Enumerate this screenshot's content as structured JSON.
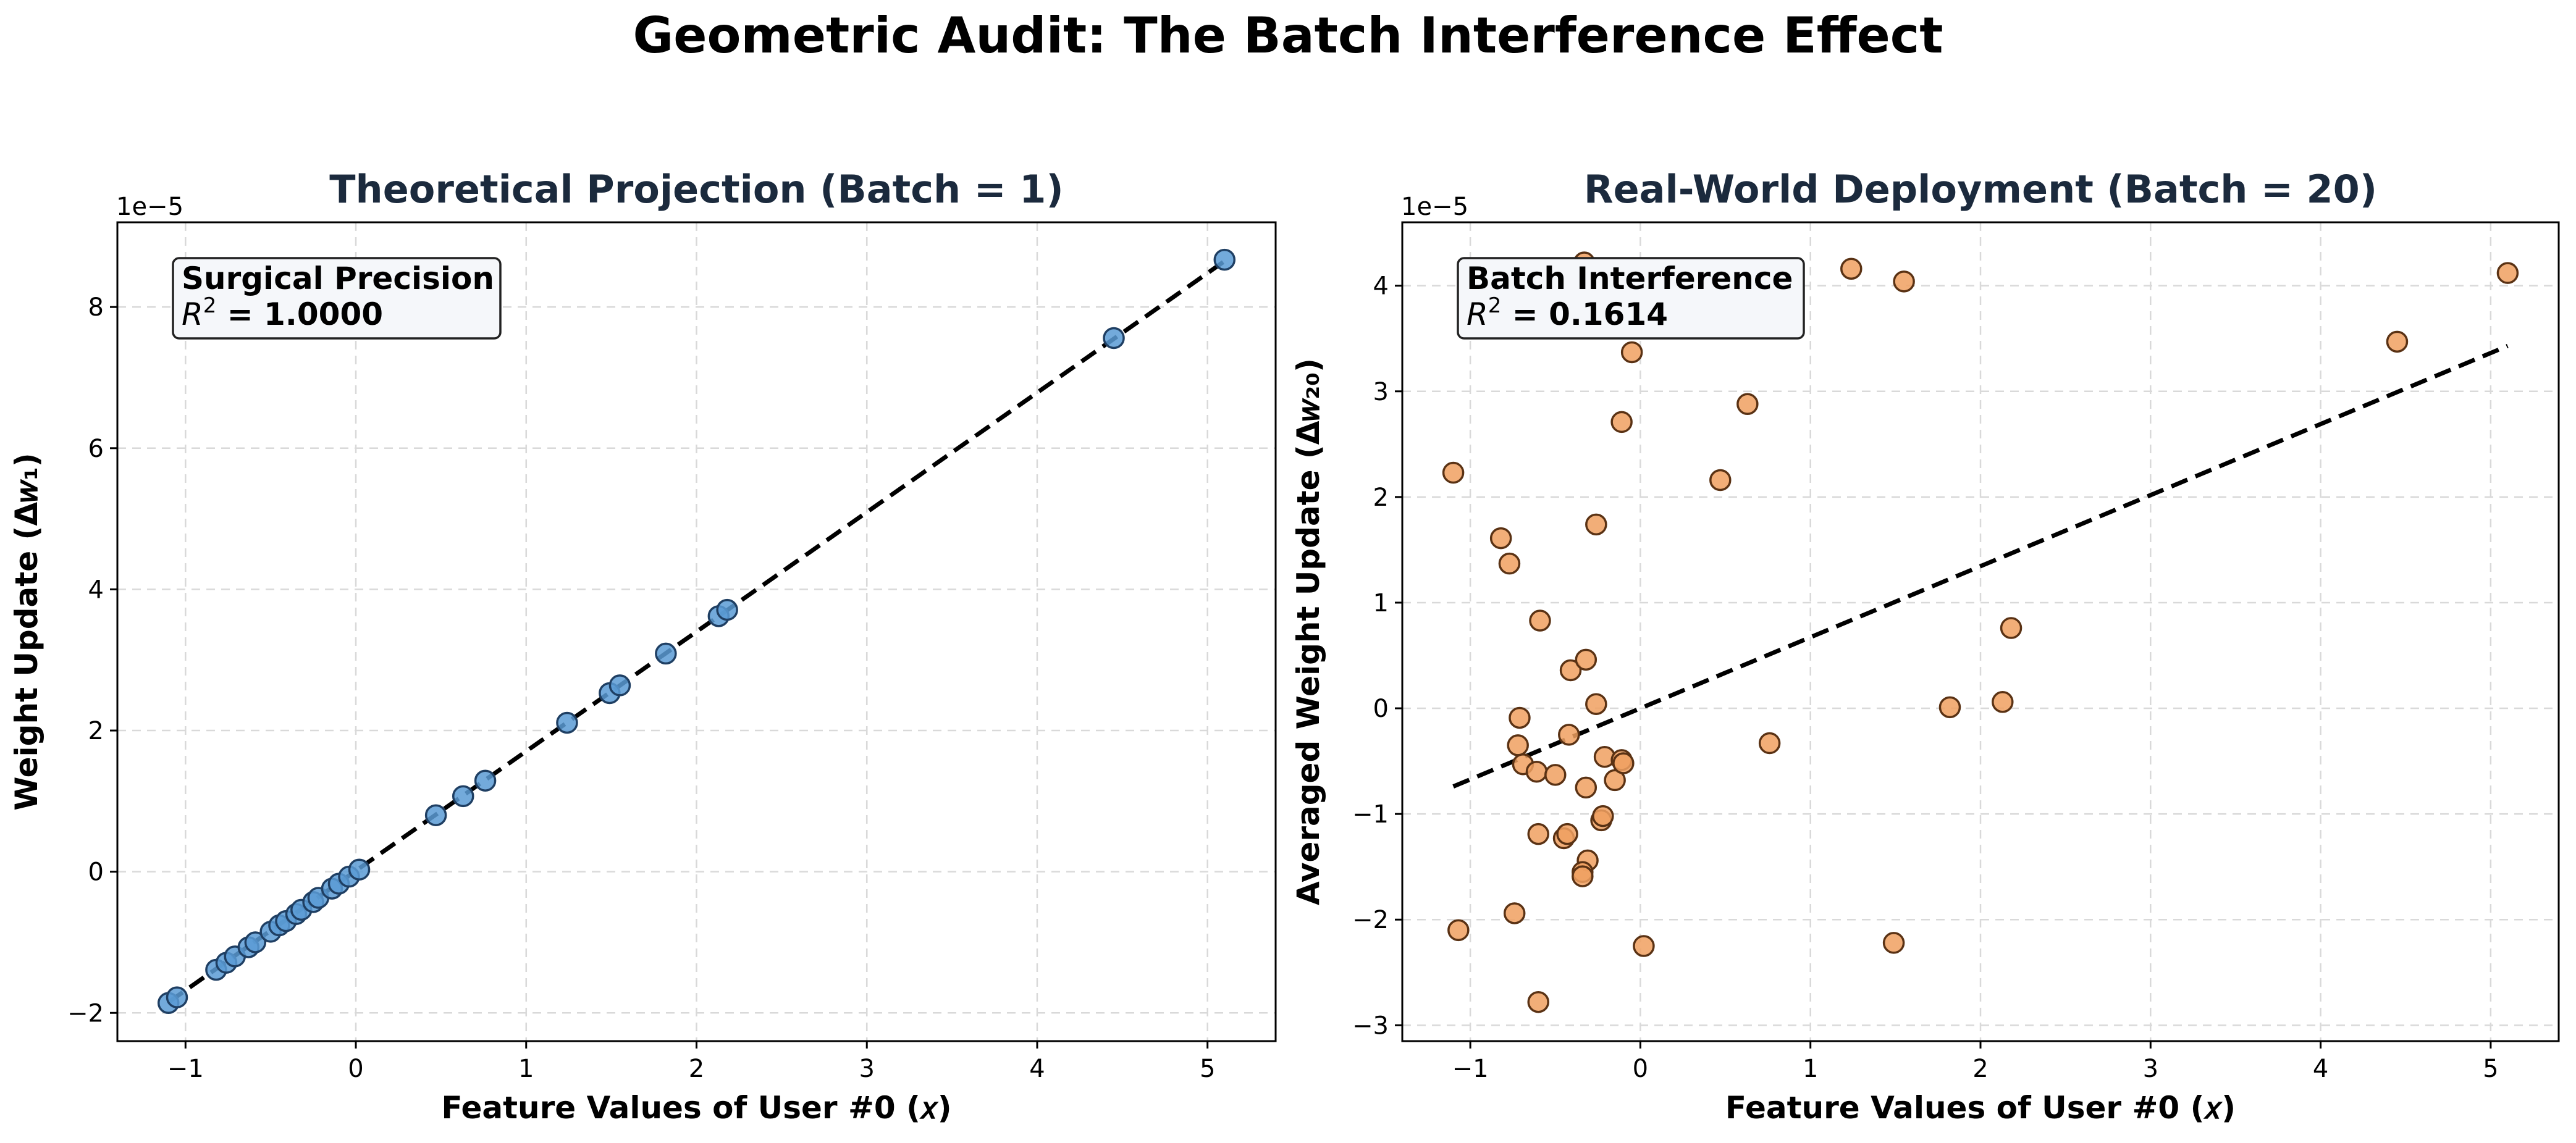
{
  "suptitle": "Geometric Audit: The Batch Interference Effect",
  "chart_data": [
    {
      "type": "scatter",
      "title": "Theoretical Projection (Batch = 1)",
      "xlabel": "Feature Values of User #0 (𝑥)",
      "ylabel": "Weight Update (Δ𝑤₁)",
      "y_offset_label": "1e−5",
      "xlim": [
        -1.4,
        5.4
      ],
      "ylim": [
        -2.4,
        9.2
      ],
      "xticks": [
        -1,
        0,
        1,
        2,
        3,
        4,
        5
      ],
      "xtick_labels": [
        "−1",
        "0",
        "1",
        "2",
        "3",
        "4",
        "5"
      ],
      "yticks": [
        -2,
        0,
        2,
        4,
        6,
        8
      ],
      "ytick_labels": [
        "−2",
        "0",
        "2",
        "4",
        "6",
        "8"
      ],
      "grid": true,
      "point_color": "#5b9bd5",
      "annotation": {
        "line1": "Surgical Precision",
        "line2_prefix": "R",
        "line2_sup": "2",
        "line2_value": " = 1.0000"
      },
      "fit_line": {
        "x": [
          -1.1,
          5.1
        ],
        "y": [
          -1.85,
          8.65
        ]
      },
      "points": [
        {
          "x": -1.1,
          "y": -1.86
        },
        {
          "x": -1.05,
          "y": -1.78
        },
        {
          "x": -0.82,
          "y": -1.39
        },
        {
          "x": -0.76,
          "y": -1.29
        },
        {
          "x": -0.71,
          "y": -1.2
        },
        {
          "x": -0.63,
          "y": -1.07
        },
        {
          "x": -0.59,
          "y": -1.0
        },
        {
          "x": -0.5,
          "y": -0.85
        },
        {
          "x": -0.45,
          "y": -0.76
        },
        {
          "x": -0.41,
          "y": -0.7
        },
        {
          "x": -0.35,
          "y": -0.6
        },
        {
          "x": -0.32,
          "y": -0.54
        },
        {
          "x": -0.25,
          "y": -0.43
        },
        {
          "x": -0.22,
          "y": -0.37
        },
        {
          "x": -0.14,
          "y": -0.24
        },
        {
          "x": -0.1,
          "y": -0.17
        },
        {
          "x": -0.04,
          "y": -0.07
        },
        {
          "x": 0.02,
          "y": 0.03
        },
        {
          "x": 0.47,
          "y": 0.8
        },
        {
          "x": 0.63,
          "y": 1.07
        },
        {
          "x": 0.76,
          "y": 1.29
        },
        {
          "x": 1.24,
          "y": 2.11
        },
        {
          "x": 1.49,
          "y": 2.53
        },
        {
          "x": 1.55,
          "y": 2.64
        },
        {
          "x": 1.82,
          "y": 3.09
        },
        {
          "x": 2.13,
          "y": 3.62
        },
        {
          "x": 2.18,
          "y": 3.71
        },
        {
          "x": 4.45,
          "y": 7.56
        },
        {
          "x": 5.1,
          "y": 8.67
        }
      ]
    },
    {
      "type": "scatter",
      "title": "Real-World Deployment (Batch = 20)",
      "xlabel": "Feature Values of User #0 (𝑥)",
      "ylabel": "Averaged Weight Update (Δ𝑤₂₀)",
      "y_offset_label": "1e−5",
      "xlim": [
        -1.4,
        5.4
      ],
      "ylim": [
        -3.15,
        4.6
      ],
      "xticks": [
        -1,
        0,
        1,
        2,
        3,
        4,
        5
      ],
      "xtick_labels": [
        "−1",
        "0",
        "1",
        "2",
        "3",
        "4",
        "5"
      ],
      "yticks": [
        -3,
        -2,
        -1,
        0,
        1,
        2,
        3,
        4
      ],
      "ytick_labels": [
        "−3",
        "−2",
        "−1",
        "0",
        "1",
        "2",
        "3",
        "4"
      ],
      "grid": true,
      "point_color": "#f0a060",
      "annotation": {
        "line1": "Batch Interference",
        "line2_prefix": "R",
        "line2_sup": "2",
        "line2_value": " = 0.1614"
      },
      "fit_line": {
        "x": [
          -1.1,
          5.1
        ],
        "y": [
          -0.74,
          3.43
        ]
      },
      "points": [
        {
          "x": -1.1,
          "y": 2.23
        },
        {
          "x": -1.07,
          "y": -2.1
        },
        {
          "x": -0.82,
          "y": 1.61
        },
        {
          "x": -0.77,
          "y": 1.37
        },
        {
          "x": -0.74,
          "y": -1.94
        },
        {
          "x": -0.71,
          "y": -0.09
        },
        {
          "x": -0.72,
          "y": -0.35
        },
        {
          "x": -0.69,
          "y": -0.53
        },
        {
          "x": -0.61,
          "y": -0.6
        },
        {
          "x": -0.59,
          "y": 0.83
        },
        {
          "x": -0.6,
          "y": -1.19
        },
        {
          "x": -0.6,
          "y": -2.78
        },
        {
          "x": -0.5,
          "y": -0.63
        },
        {
          "x": -0.45,
          "y": -1.23
        },
        {
          "x": -0.43,
          "y": -1.19
        },
        {
          "x": -0.41,
          "y": 0.36
        },
        {
          "x": -0.42,
          "y": -0.25
        },
        {
          "x": -0.33,
          "y": 4.22
        },
        {
          "x": -0.32,
          "y": 0.46
        },
        {
          "x": -0.32,
          "y": -0.75
        },
        {
          "x": -0.31,
          "y": -1.44
        },
        {
          "x": -0.34,
          "y": -1.55
        },
        {
          "x": -0.34,
          "y": -1.59
        },
        {
          "x": -0.26,
          "y": 1.74
        },
        {
          "x": -0.26,
          "y": 0.04
        },
        {
          "x": -0.23,
          "y": -1.06
        },
        {
          "x": -0.22,
          "y": -1.02
        },
        {
          "x": -0.21,
          "y": -0.46
        },
        {
          "x": -0.15,
          "y": -0.68
        },
        {
          "x": -0.11,
          "y": 2.71
        },
        {
          "x": -0.11,
          "y": -0.49
        },
        {
          "x": -0.1,
          "y": -0.52
        },
        {
          "x": -0.05,
          "y": 3.37
        },
        {
          "x": 0.02,
          "y": -2.25
        },
        {
          "x": 0.47,
          "y": 2.16
        },
        {
          "x": 0.63,
          "y": 2.88
        },
        {
          "x": 0.76,
          "y": -0.33
        },
        {
          "x": 1.24,
          "y": 4.16
        },
        {
          "x": 1.49,
          "y": -2.22
        },
        {
          "x": 1.55,
          "y": 4.04
        },
        {
          "x": 1.82,
          "y": 0.01
        },
        {
          "x": 2.13,
          "y": 0.06
        },
        {
          "x": 2.18,
          "y": 0.76
        },
        {
          "x": 4.45,
          "y": 3.47
        },
        {
          "x": 5.1,
          "y": 4.12
        }
      ]
    }
  ]
}
